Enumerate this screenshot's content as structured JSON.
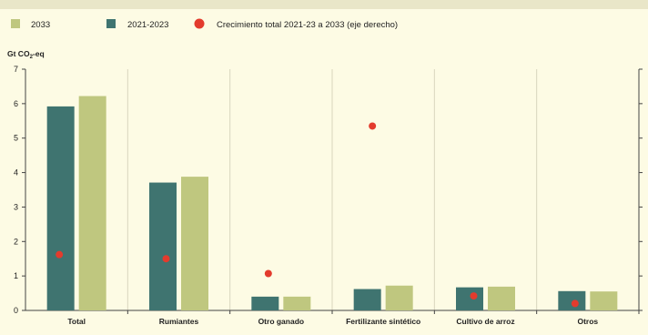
{
  "chart_data": {
    "type": "bar",
    "categories": [
      "Total",
      "Rumiantes",
      "Otro ganado",
      "Fertilizante sintético",
      "Cultivo de arroz",
      "Otros"
    ],
    "series": [
      {
        "name": "2021-2023",
        "kind": "bar",
        "color": "#3f7470",
        "values": [
          5.92,
          3.71,
          0.4,
          0.62,
          0.67,
          0.56
        ]
      },
      {
        "name": "2033",
        "kind": "bar",
        "color": "#bfc77f",
        "values": [
          6.22,
          3.88,
          0.4,
          0.72,
          0.69,
          0.55
        ]
      },
      {
        "name": "Crecimiento total 2021-23 a 2033 (eje derecho)",
        "kind": "scatter",
        "axis": "right",
        "color": "#e33b2d",
        "values": [
          1.62,
          1.5,
          1.07,
          5.35,
          0.42,
          0.2
        ]
      }
    ],
    "ylabel_unit_prefix": "Gt CO",
    "ylabel_unit_sub": "2",
    "ylabel_unit_suffix": "-eq",
    "ylim": [
      0,
      7
    ],
    "ytick_labels": [
      "0",
      "1",
      "2",
      "3",
      "4",
      "5",
      "6",
      "7"
    ],
    "y2lim": [
      0,
      7
    ],
    "grid": false,
    "legend_position": "top"
  }
}
